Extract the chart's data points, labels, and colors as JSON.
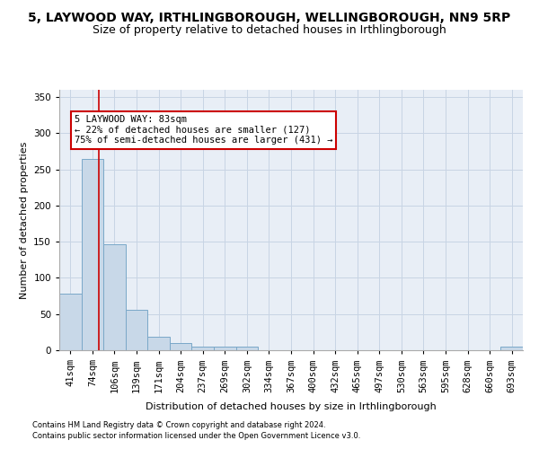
{
  "title": "5, LAYWOOD WAY, IRTHLINGBOROUGH, WELLINGBOROUGH, NN9 5RP",
  "subtitle": "Size of property relative to detached houses in Irthlingborough",
  "xlabel": "Distribution of detached houses by size in Irthlingborough",
  "ylabel": "Number of detached properties",
  "footnote1": "Contains HM Land Registry data © Crown copyright and database right 2024.",
  "footnote2": "Contains public sector information licensed under the Open Government Licence v3.0.",
  "bar_labels": [
    "41sqm",
    "74sqm",
    "106sqm",
    "139sqm",
    "171sqm",
    "204sqm",
    "237sqm",
    "269sqm",
    "302sqm",
    "334sqm",
    "367sqm",
    "400sqm",
    "432sqm",
    "465sqm",
    "497sqm",
    "530sqm",
    "563sqm",
    "595sqm",
    "628sqm",
    "660sqm",
    "693sqm"
  ],
  "bar_values": [
    78,
    265,
    147,
    56,
    19,
    10,
    5,
    5,
    5,
    0,
    0,
    0,
    0,
    0,
    0,
    0,
    0,
    0,
    0,
    0,
    5
  ],
  "bar_color": "#c8d8e8",
  "bar_edge_color": "#7aa8c8",
  "ylim": [
    0,
    360
  ],
  "yticks": [
    0,
    50,
    100,
    150,
    200,
    250,
    300,
    350
  ],
  "annotation_box_text": "5 LAYWOOD WAY: 83sqm\n← 22% of detached houses are smaller (127)\n75% of semi-detached houses are larger (431) →",
  "annotation_box_color": "#ffffff",
  "annotation_border_color": "#cc0000",
  "grid_color": "#c8d4e4",
  "background_color": "#e8eef6",
  "title_fontsize": 10,
  "subtitle_fontsize": 9,
  "axis_fontsize": 8,
  "tick_fontsize": 7.5,
  "annot_fontsize": 7.5,
  "footnote_fontsize": 6
}
